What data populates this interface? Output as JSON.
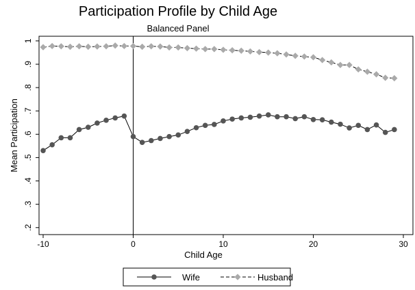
{
  "chart_data": {
    "type": "line",
    "title": "Participation Profile by Child Age",
    "subtitle": "Balanced Panel",
    "xlabel": "Child Age",
    "ylabel": "Mean Participation",
    "xlim": [
      -10,
      30
    ],
    "ylim": [
      0.17,
      1.02
    ],
    "xticks": [
      -10,
      0,
      10,
      20,
      30
    ],
    "xtick_labels": [
      "-10",
      "0",
      "10",
      "20",
      "30"
    ],
    "yticks": [
      0.2,
      0.3,
      0.4,
      0.5,
      0.6,
      0.7,
      0.8,
      0.9,
      1.0
    ],
    "ytick_labels": [
      ".2",
      ".3",
      ".4",
      ".5",
      ".6",
      ".7",
      ".8",
      ".9",
      "1"
    ],
    "reference_line_x": 0,
    "grid": false,
    "legend_position": "bottom",
    "x": [
      -10,
      -9,
      -8,
      -7,
      -6,
      -5,
      -4,
      -3,
      -2,
      -1,
      0,
      1,
      2,
      3,
      4,
      5,
      6,
      7,
      8,
      9,
      10,
      11,
      12,
      13,
      14,
      15,
      16,
      17,
      18,
      19,
      20,
      21,
      22,
      23,
      24,
      25,
      26,
      27,
      28,
      29
    ],
    "series": [
      {
        "name": "Wife",
        "color": "#555555",
        "marker": "circle",
        "line_style": "solid",
        "values": [
          0.53,
          0.555,
          0.585,
          0.585,
          0.62,
          0.63,
          0.648,
          0.66,
          0.67,
          0.678,
          0.59,
          0.565,
          0.573,
          0.582,
          0.59,
          0.597,
          0.612,
          0.628,
          0.638,
          0.642,
          0.657,
          0.665,
          0.67,
          0.673,
          0.678,
          0.683,
          0.675,
          0.675,
          0.667,
          0.675,
          0.663,
          0.662,
          0.652,
          0.643,
          0.627,
          0.638,
          0.62,
          0.64,
          0.608,
          0.62
        ]
      },
      {
        "name": "Husband",
        "color": "#aaaaaa",
        "marker": "diamond",
        "line_style": "dashed",
        "values": [
          0.973,
          0.978,
          0.977,
          0.975,
          0.977,
          0.975,
          0.976,
          0.977,
          0.98,
          0.978,
          0.978,
          0.975,
          0.977,
          0.976,
          0.972,
          0.972,
          0.969,
          0.967,
          0.965,
          0.965,
          0.962,
          0.96,
          0.958,
          0.955,
          0.952,
          0.95,
          0.947,
          0.942,
          0.936,
          0.933,
          0.93,
          0.918,
          0.908,
          0.897,
          0.897,
          0.878,
          0.868,
          0.857,
          0.842,
          0.84
        ]
      }
    ]
  }
}
